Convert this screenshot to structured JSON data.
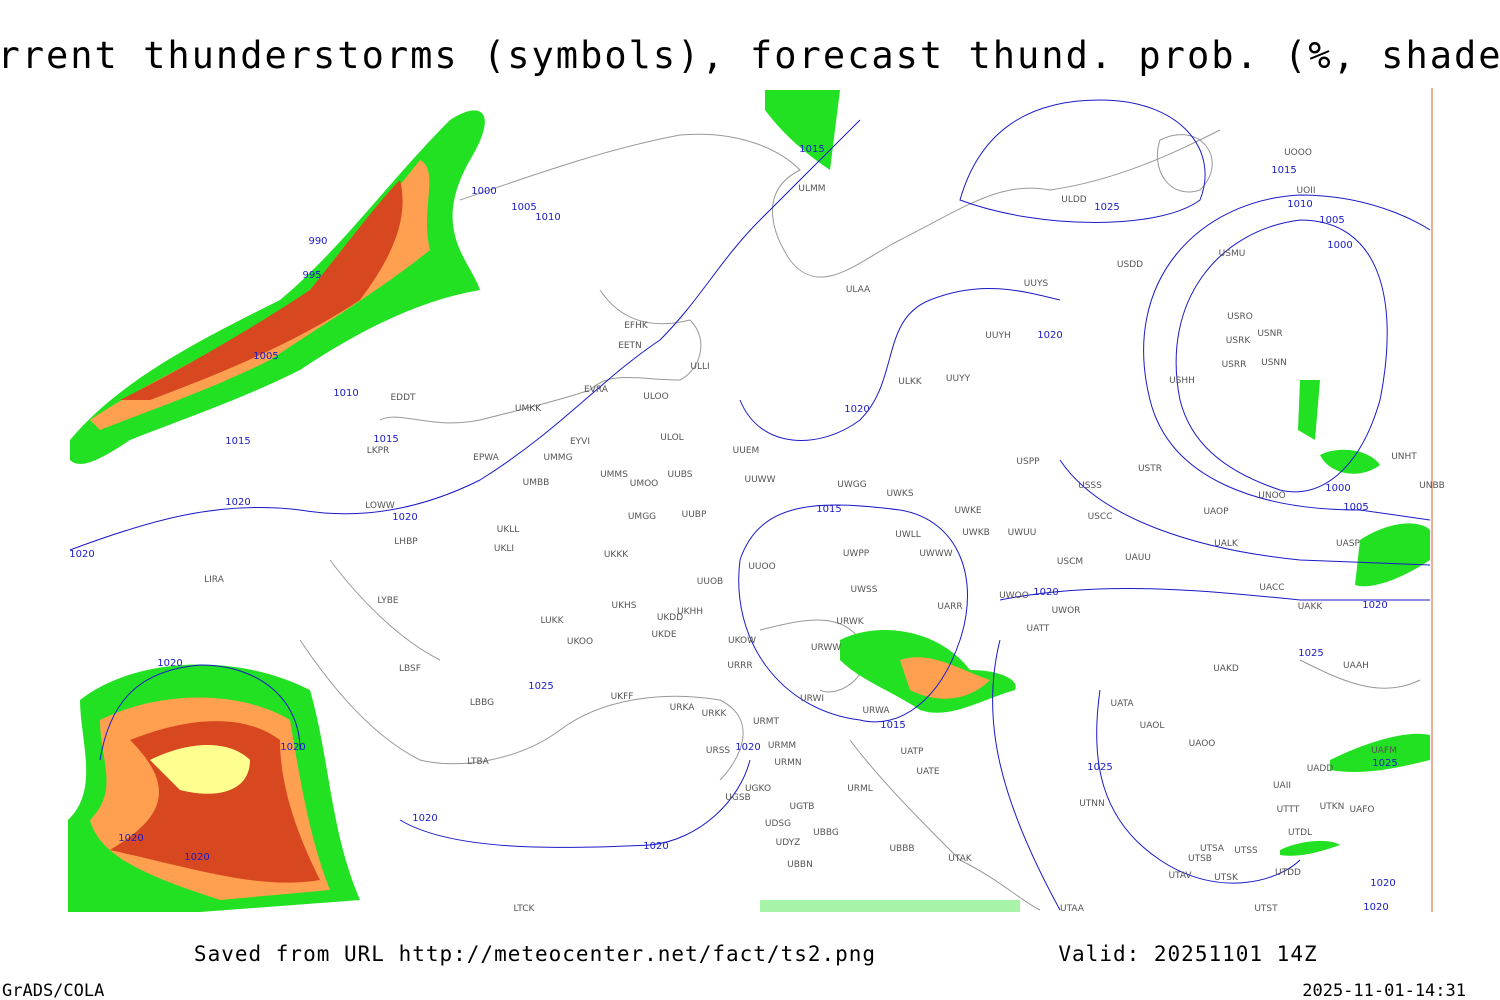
{
  "header": {
    "title": "Current thunderstorms (symbols), forecast thund. prob. (%, shaded)"
  },
  "footer": {
    "source": "Saved from URL http://meteocenter.net/fact/ts2.png",
    "valid": "Valid: 20251101 14Z",
    "software": "GrADS/COLA",
    "timestamp": "2025-11-01-14:31"
  },
  "isobar_labels": [
    "1015",
    "1000",
    "1005",
    "1010",
    "990",
    "995",
    "1005",
    "1010",
    "1015",
    "1015",
    "1020",
    "1020",
    "1020",
    "1020",
    "1020",
    "1020",
    "1020",
    "1020",
    "1025",
    "1020",
    "1020",
    "1015",
    "1020",
    "1015",
    "1020",
    "1025",
    "1015",
    "1010",
    "1005",
    "1000",
    "1000",
    "1005",
    "1020",
    "1020",
    "1025",
    "1025",
    "1025",
    "1020",
    "1020"
  ],
  "stations": [
    "ULMM",
    "ULAA",
    "EFHK",
    "EETN",
    "ULLI",
    "EVRA",
    "ULOO",
    "EDDT",
    "UMKK",
    "ULOL",
    "EYVI",
    "UUEM",
    "LKPR",
    "EPWA",
    "UMMG",
    "UMMS",
    "UUBS",
    "UMOO",
    "UUWW",
    "UWGG",
    "UMBB",
    "UWKS",
    "LOWW",
    "UUBP",
    "UMGG",
    "UWKE",
    "UWKB",
    "UWUU",
    "UKLL",
    "UWLL",
    "LHBP",
    "UKLI",
    "UWPP",
    "UWWW",
    "UKKK",
    "UUOO",
    "LIRA",
    "UUOB",
    "UWSS",
    "LYBE",
    "UKHH",
    "UKHS",
    "UKDD",
    "UARR",
    "URWK",
    "LUKK",
    "UKDE",
    "UKOO",
    "UKOW",
    "URWW",
    "URRR",
    "LBSF",
    "UKFF",
    "URWI",
    "LBBG",
    "URKA",
    "URWA",
    "URKK",
    "URMT",
    "URMM",
    "URSS",
    "UATP",
    "LTBA",
    "URMN",
    "UATE",
    "UGKO",
    "URML",
    "UGSB",
    "UGTB",
    "UDSG",
    "UBBG",
    "UBBB",
    "UDYZ",
    "UTAK",
    "UBBN",
    "LTCK",
    "UUYS",
    "UUYH",
    "ULKK",
    "UUYY",
    "USPP",
    "USSS",
    "USTR",
    "USCC",
    "USCM",
    "UAUU",
    "UWOO",
    "UWOR",
    "UATT",
    "UACC",
    "UAKK",
    "UAKD",
    "UATA",
    "UAOL",
    "UAOO",
    "UAAH",
    "UAII",
    "UADD",
    "UAFM",
    "UTTT",
    "UTKN",
    "UAFO",
    "UTDL",
    "UTSA",
    "UTSS",
    "UTSB",
    "UTNN",
    "UTAV",
    "UTSK",
    "UTDD",
    "UTST",
    "UTAA",
    "USMU",
    "USRO",
    "USNR",
    "USRK",
    "USRR",
    "USNN",
    "USHH",
    "USDD",
    "ULDD",
    "UOOO",
    "UOII",
    "UNHT",
    "UNBB",
    "UNOO",
    "UAOP",
    "UALK",
    "UASP"
  ]
}
